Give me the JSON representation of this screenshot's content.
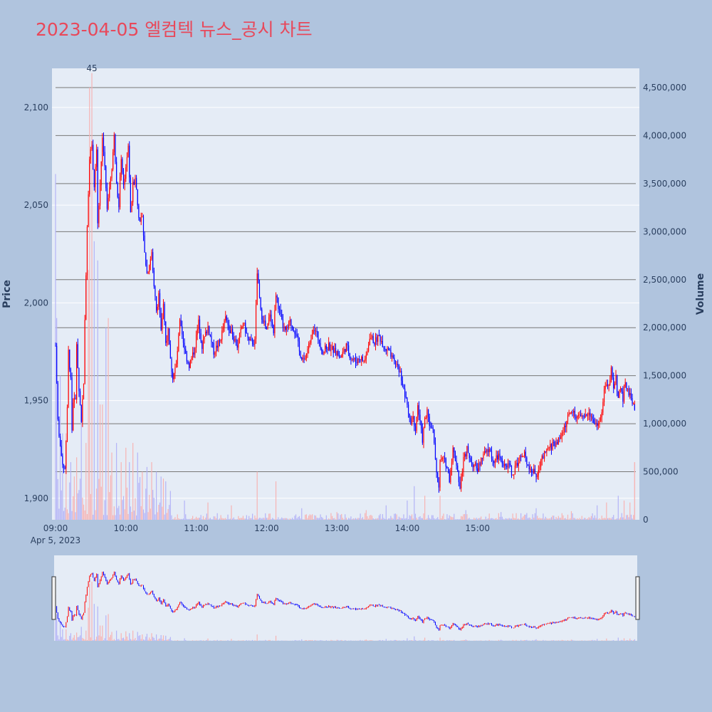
{
  "title": "2023-04-05 엘컴텍 뉴스_공시 차트",
  "colors": {
    "background": "#b0c4de",
    "plot_bg": "#e5ecf6",
    "title": "#e8485a",
    "up": "#ff0000",
    "down": "#0000ff",
    "up_volume": "#f7b4b4",
    "down_volume": "#b4b4f7",
    "volume_grid": "#777777",
    "price_grid": "#ffffff",
    "text": "#2a3f5f"
  },
  "chart_data": {
    "type": "candlestick",
    "title": "2023-04-05 엘컴텍 뉴스_공시 차트",
    "ylabel": "Price",
    "y2label": "Volume",
    "x_tick_labels": [
      "09:00",
      "10:00",
      "11:00",
      "12:00",
      "13:00",
      "14:00",
      "15:00"
    ],
    "x_date_label": "Apr 5, 2023",
    "price_ticks": [
      1900,
      1950,
      2000,
      2050,
      2100
    ],
    "price_tick_labels": [
      "1,900",
      "1,950",
      "2,000",
      "2,050",
      "2,100"
    ],
    "ylim": [
      1889,
      2120
    ],
    "volume_ticks": [
      0,
      500000,
      1000000,
      1500000,
      2000000,
      2500000,
      3000000,
      3500000,
      4000000,
      4500000
    ],
    "volume_tick_labels": [
      "0",
      "500,000",
      "1,000,000",
      "1,500,000",
      "2,000,000",
      "2,500,000",
      "3,000,000",
      "3,500,000",
      "4,000,000",
      "4,500,000"
    ],
    "y2lim": [
      0,
      4700000
    ],
    "annotation": "45",
    "x_range_minutes": [
      0,
      390
    ],
    "price_path": [
      [
        0,
        1978
      ],
      [
        2,
        1940
      ],
      [
        5,
        1920
      ],
      [
        8,
        1915
      ],
      [
        10,
        1945
      ],
      [
        11,
        1975
      ],
      [
        13,
        1960
      ],
      [
        14,
        1935
      ],
      [
        15,
        1950
      ],
      [
        17,
        1950
      ],
      [
        18,
        1980
      ],
      [
        20,
        1955
      ],
      [
        22,
        1940
      ],
      [
        24,
        1960
      ],
      [
        25,
        1990
      ],
      [
        27,
        2040
      ],
      [
        29,
        2075
      ],
      [
        31,
        2080
      ],
      [
        33,
        2060
      ],
      [
        35,
        2080
      ],
      [
        36,
        2040
      ],
      [
        38,
        2060
      ],
      [
        40,
        2085
      ],
      [
        42,
        2070
      ],
      [
        44,
        2050
      ],
      [
        46,
        2060
      ],
      [
        48,
        2070
      ],
      [
        50,
        2085
      ],
      [
        52,
        2060
      ],
      [
        54,
        2050
      ],
      [
        56,
        2075
      ],
      [
        58,
        2060
      ],
      [
        60,
        2070
      ],
      [
        62,
        2080
      ],
      [
        64,
        2045
      ],
      [
        66,
        2060
      ],
      [
        68,
        2065
      ],
      [
        70,
        2050
      ],
      [
        72,
        2040
      ],
      [
        74,
        2045
      ],
      [
        76,
        2025
      ],
      [
        78,
        2015
      ],
      [
        80,
        2020
      ],
      [
        82,
        2025
      ],
      [
        84,
        2010
      ],
      [
        86,
        1995
      ],
      [
        88,
        2005
      ],
      [
        90,
        1985
      ],
      [
        92,
        2000
      ],
      [
        94,
        1980
      ],
      [
        96,
        1985
      ],
      [
        98,
        1970
      ],
      [
        100,
        1962
      ],
      [
        103,
        1968
      ],
      [
        106,
        1990
      ],
      [
        110,
        1975
      ],
      [
        114,
        1968
      ],
      [
        118,
        1975
      ],
      [
        122,
        1990
      ],
      [
        125,
        1978
      ],
      [
        130,
        1988
      ],
      [
        135,
        1975
      ],
      [
        140,
        1980
      ],
      [
        145,
        1992
      ],
      [
        150,
        1985
      ],
      [
        155,
        1978
      ],
      [
        160,
        1990
      ],
      [
        165,
        1980
      ],
      [
        170,
        1980
      ],
      [
        172,
        2015
      ],
      [
        175,
        1995
      ],
      [
        178,
        1990
      ],
      [
        180,
        1985
      ],
      [
        183,
        1995
      ],
      [
        186,
        1985
      ],
      [
        188,
        2005
      ],
      [
        190,
        1998
      ],
      [
        193,
        1990
      ],
      [
        196,
        1985
      ],
      [
        200,
        1990
      ],
      [
        205,
        1985
      ],
      [
        208,
        1975
      ],
      [
        212,
        1970
      ],
      [
        216,
        1978
      ],
      [
        220,
        1988
      ],
      [
        224,
        1982
      ],
      [
        228,
        1975
      ],
      [
        233,
        1978
      ],
      [
        238,
        1975
      ],
      [
        243,
        1972
      ],
      [
        248,
        1978
      ],
      [
        252,
        1972
      ],
      [
        256,
        1970
      ],
      [
        260,
        1972
      ],
      [
        263,
        1970
      ],
      [
        266,
        1975
      ],
      [
        268,
        1983
      ],
      [
        272,
        1980
      ],
      [
        276,
        1983
      ],
      [
        280,
        1978
      ],
      [
        284,
        1975
      ],
      [
        288,
        1970
      ],
      [
        292,
        1968
      ],
      [
        295,
        1962
      ],
      [
        297,
        1955
      ],
      [
        299,
        1950
      ],
      [
        301,
        1945
      ],
      [
        303,
        1940
      ],
      [
        305,
        1942
      ],
      [
        307,
        1935
      ],
      [
        309,
        1948
      ],
      [
        311,
        1938
      ],
      [
        313,
        1930
      ],
      [
        315,
        1940
      ],
      [
        317,
        1945
      ],
      [
        319,
        1935
      ],
      [
        321,
        1938
      ],
      [
        323,
        1930
      ],
      [
        325,
        1912
      ],
      [
        327,
        1905
      ],
      [
        328,
        1918
      ],
      [
        330,
        1920
      ],
      [
        333,
        1918
      ],
      [
        336,
        1910
      ],
      [
        339,
        1925
      ],
      [
        342,
        1918
      ],
      [
        345,
        1905
      ],
      [
        348,
        1920
      ],
      [
        351,
        1925
      ],
      [
        355,
        1918
      ],
      [
        360,
        1915
      ],
      [
        365,
        1922
      ],
      [
        370,
        1925
      ],
      [
        374,
        1918
      ],
      [
        378,
        1922
      ],
      [
        382,
        1915
      ],
      [
        386,
        1918
      ],
      [
        390,
        1912
      ],
      [
        395,
        1920
      ],
      [
        400,
        1922
      ],
      [
        405,
        1915
      ],
      [
        410,
        1912
      ],
      [
        415,
        1920
      ],
      [
        420,
        1925
      ],
      [
        425,
        1928
      ],
      [
        430,
        1930
      ],
      [
        435,
        1938
      ],
      [
        440,
        1945
      ],
      [
        445,
        1942
      ],
      [
        450,
        1940
      ],
      [
        455,
        1945
      ],
      [
        460,
        1938
      ],
      [
        465,
        1940
      ],
      [
        468,
        1955
      ],
      [
        470,
        1960
      ],
      [
        472,
        1958
      ],
      [
        474,
        1965
      ],
      [
        476,
        1955
      ],
      [
        478,
        1962
      ],
      [
        480,
        1950
      ],
      [
        482,
        1958
      ],
      [
        484,
        1950
      ],
      [
        486,
        1960
      ],
      [
        488,
        1955
      ],
      [
        490,
        1952
      ],
      [
        492,
        1950
      ],
      [
        494,
        1946
      ]
    ],
    "vol_spikes": [
      [
        0,
        3600000
      ],
      [
        1,
        2100000
      ],
      [
        4,
        1500000
      ],
      [
        6,
        900000
      ],
      [
        9,
        900000
      ],
      [
        13,
        600000
      ],
      [
        18,
        650000
      ],
      [
        22,
        1100000
      ],
      [
        26,
        800000
      ],
      [
        28,
        2600000
      ],
      [
        29,
        4500000
      ],
      [
        31,
        4650000
      ],
      [
        33,
        2900000
      ],
      [
        36,
        2700000
      ],
      [
        38,
        1200000
      ],
      [
        40,
        1200000
      ],
      [
        43,
        2000000
      ],
      [
        45,
        2100000
      ],
      [
        48,
        700000
      ],
      [
        52,
        800000
      ],
      [
        56,
        600000
      ],
      [
        60,
        750000
      ],
      [
        63,
        600000
      ],
      [
        66,
        800000
      ],
      [
        70,
        700000
      ],
      [
        74,
        500000
      ],
      [
        78,
        550000
      ],
      [
        82,
        600000
      ],
      [
        86,
        500000
      ],
      [
        90,
        450000
      ],
      [
        94,
        400000
      ],
      [
        98,
        300000
      ],
      [
        110,
        200000
      ],
      [
        130,
        180000
      ],
      [
        150,
        150000
      ],
      [
        172,
        500000
      ],
      [
        188,
        400000
      ],
      [
        210,
        120000
      ],
      [
        240,
        80000
      ],
      [
        265,
        100000
      ],
      [
        282,
        150000
      ],
      [
        300,
        200000
      ],
      [
        306,
        350000
      ],
      [
        315,
        250000
      ],
      [
        328,
        250000
      ],
      [
        350,
        100000
      ],
      [
        380,
        80000
      ],
      [
        410,
        120000
      ],
      [
        440,
        90000
      ],
      [
        462,
        150000
      ],
      [
        470,
        180000
      ],
      [
        480,
        250000
      ],
      [
        485,
        200000
      ],
      [
        490,
        180000
      ],
      [
        494,
        120000
      ]
    ]
  },
  "navigator": {
    "label": "range-slider"
  }
}
